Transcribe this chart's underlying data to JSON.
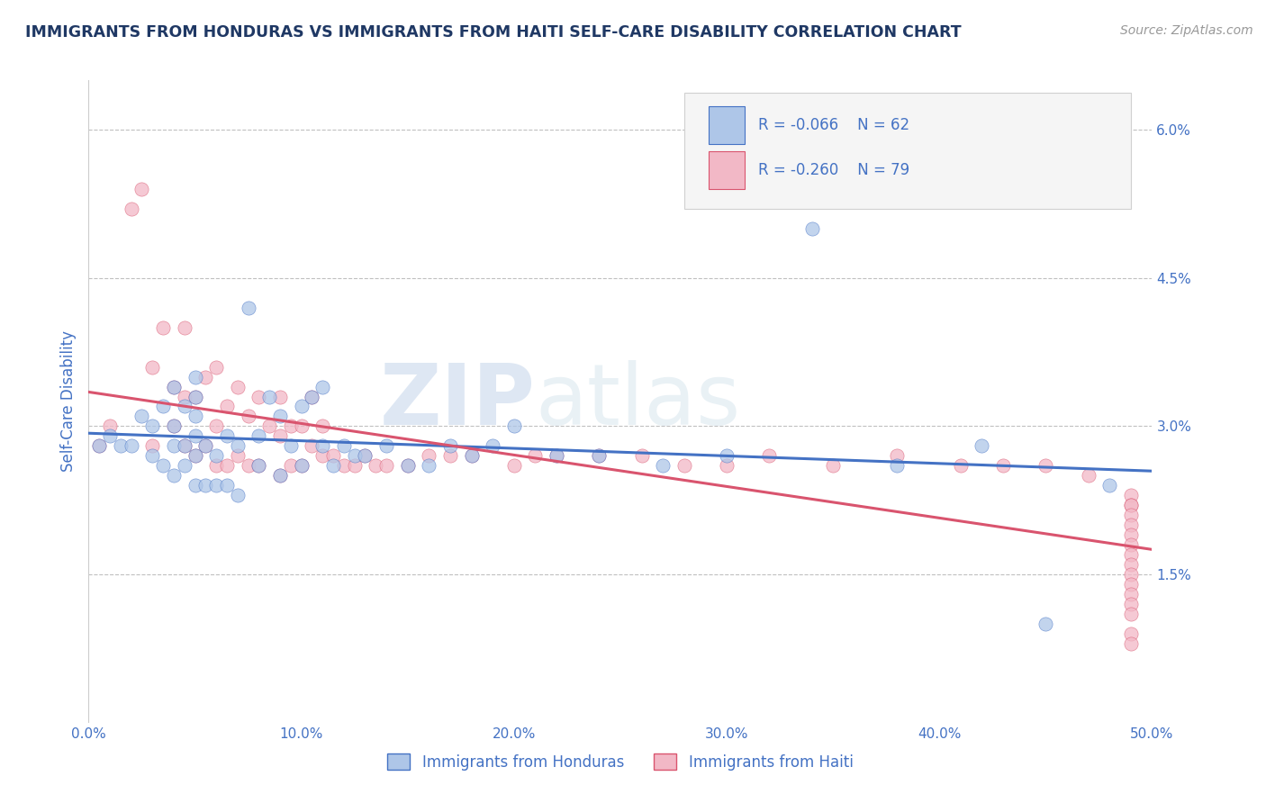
{
  "title": "IMMIGRANTS FROM HONDURAS VS IMMIGRANTS FROM HAITI SELF-CARE DISABILITY CORRELATION CHART",
  "source": "Source: ZipAtlas.com",
  "ylabel": "Self-Care Disability",
  "x_min": 0.0,
  "x_max": 0.5,
  "y_min": 0.0,
  "y_max": 0.065,
  "x_ticks": [
    0.0,
    0.1,
    0.2,
    0.3,
    0.4,
    0.5
  ],
  "x_tick_labels": [
    "0.0%",
    "10.0%",
    "20.0%",
    "30.0%",
    "40.0%",
    "50.0%"
  ],
  "y_ticks": [
    0.015,
    0.03,
    0.045,
    0.06
  ],
  "y_tick_labels": [
    "1.5%",
    "3.0%",
    "4.5%",
    "6.0%"
  ],
  "legend_r1": "R = -0.066",
  "legend_n1": "N = 62",
  "legend_r2": "R = -0.260",
  "legend_n2": "N = 79",
  "legend_label1": "Immigrants from Honduras",
  "legend_label2": "Immigrants from Haiti",
  "color_honduras": "#aec6e8",
  "color_haiti": "#f2b8c6",
  "line_color_honduras": "#4472c4",
  "line_color_haiti": "#d9546e",
  "watermark_zip": "ZIP",
  "watermark_atlas": "atlas",
  "title_color": "#1f3864",
  "axis_label_color": "#4472c4",
  "tick_color": "#4472c4",
  "background_color": "#ffffff",
  "grid_color": "#c0c0c0",
  "honduras_x": [
    0.005,
    0.01,
    0.015,
    0.02,
    0.025,
    0.03,
    0.03,
    0.035,
    0.035,
    0.04,
    0.04,
    0.04,
    0.04,
    0.045,
    0.045,
    0.045,
    0.05,
    0.05,
    0.05,
    0.05,
    0.05,
    0.05,
    0.055,
    0.055,
    0.06,
    0.06,
    0.065,
    0.065,
    0.07,
    0.07,
    0.075,
    0.08,
    0.08,
    0.085,
    0.09,
    0.09,
    0.095,
    0.1,
    0.1,
    0.105,
    0.11,
    0.11,
    0.115,
    0.12,
    0.125,
    0.13,
    0.14,
    0.15,
    0.16,
    0.17,
    0.18,
    0.19,
    0.2,
    0.22,
    0.24,
    0.27,
    0.3,
    0.34,
    0.38,
    0.42,
    0.45,
    0.48
  ],
  "honduras_y": [
    0.028,
    0.029,
    0.028,
    0.028,
    0.031,
    0.027,
    0.03,
    0.026,
    0.032,
    0.025,
    0.028,
    0.03,
    0.034,
    0.026,
    0.028,
    0.032,
    0.024,
    0.027,
    0.029,
    0.031,
    0.033,
    0.035,
    0.024,
    0.028,
    0.024,
    0.027,
    0.024,
    0.029,
    0.023,
    0.028,
    0.042,
    0.026,
    0.029,
    0.033,
    0.025,
    0.031,
    0.028,
    0.026,
    0.032,
    0.033,
    0.028,
    0.034,
    0.026,
    0.028,
    0.027,
    0.027,
    0.028,
    0.026,
    0.026,
    0.028,
    0.027,
    0.028,
    0.03,
    0.027,
    0.027,
    0.026,
    0.027,
    0.05,
    0.026,
    0.028,
    0.01,
    0.024
  ],
  "haiti_x": [
    0.005,
    0.01,
    0.02,
    0.025,
    0.03,
    0.03,
    0.035,
    0.04,
    0.04,
    0.045,
    0.045,
    0.045,
    0.05,
    0.05,
    0.055,
    0.055,
    0.06,
    0.06,
    0.06,
    0.065,
    0.065,
    0.07,
    0.07,
    0.075,
    0.075,
    0.08,
    0.08,
    0.085,
    0.09,
    0.09,
    0.09,
    0.095,
    0.095,
    0.1,
    0.1,
    0.105,
    0.105,
    0.11,
    0.11,
    0.115,
    0.12,
    0.125,
    0.13,
    0.135,
    0.14,
    0.15,
    0.16,
    0.17,
    0.18,
    0.2,
    0.21,
    0.22,
    0.24,
    0.26,
    0.28,
    0.3,
    0.32,
    0.35,
    0.38,
    0.41,
    0.43,
    0.45,
    0.47,
    0.49,
    0.49,
    0.49,
    0.49,
    0.49,
    0.49,
    0.49,
    0.49,
    0.49,
    0.49,
    0.49,
    0.49,
    0.49,
    0.49,
    0.49,
    0.49
  ],
  "haiti_y": [
    0.028,
    0.03,
    0.052,
    0.054,
    0.028,
    0.036,
    0.04,
    0.03,
    0.034,
    0.028,
    0.033,
    0.04,
    0.027,
    0.033,
    0.028,
    0.035,
    0.026,
    0.03,
    0.036,
    0.026,
    0.032,
    0.027,
    0.034,
    0.026,
    0.031,
    0.026,
    0.033,
    0.03,
    0.025,
    0.029,
    0.033,
    0.026,
    0.03,
    0.026,
    0.03,
    0.028,
    0.033,
    0.027,
    0.03,
    0.027,
    0.026,
    0.026,
    0.027,
    0.026,
    0.026,
    0.026,
    0.027,
    0.027,
    0.027,
    0.026,
    0.027,
    0.027,
    0.027,
    0.027,
    0.026,
    0.026,
    0.027,
    0.026,
    0.027,
    0.026,
    0.026,
    0.026,
    0.025,
    0.023,
    0.022,
    0.022,
    0.021,
    0.02,
    0.019,
    0.018,
    0.017,
    0.016,
    0.015,
    0.014,
    0.013,
    0.012,
    0.011,
    0.009,
    0.008
  ]
}
